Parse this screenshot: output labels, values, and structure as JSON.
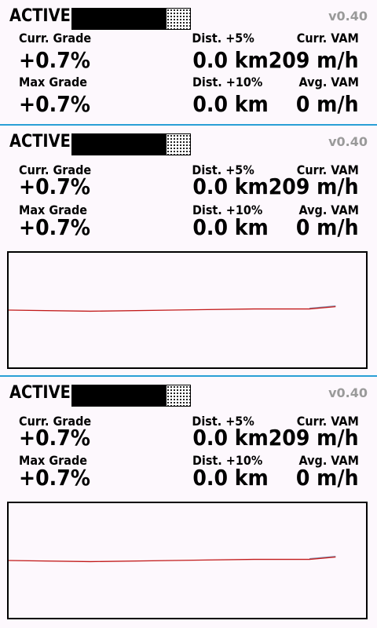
{
  "app": {
    "status": "ACTIVE",
    "version": "v0.40"
  },
  "colors": {
    "accent": "#2a9fd6",
    "chart_line": "#c21a1a",
    "chart_line_secondary": "#8a9ab5"
  },
  "progress": {
    "filled_fraction": 0.8
  },
  "fields": {
    "curr_grade": {
      "label": "Curr. Grade",
      "value": "+0.7%"
    },
    "dist_5": {
      "label": "Dist. +5%",
      "value": "0.0 km"
    },
    "curr_vam": {
      "label": "Curr. VAM",
      "value": "209 m/h"
    },
    "max_grade": {
      "label": "Max Grade",
      "value": "+0.7%"
    },
    "dist_10": {
      "label": "Dist. +10%",
      "value": "0.0 km"
    },
    "avg_vam": {
      "label": "Avg. VAM",
      "value": "0 m/h"
    }
  },
  "chart_data": {
    "type": "line",
    "title": "",
    "xlabel": "",
    "ylabel": "",
    "grid": false,
    "ylim": [
      0,
      1
    ],
    "series": [
      {
        "x": [
          0,
          0.25,
          0.5,
          0.75,
          0.92,
          1.0
        ],
        "y": [
          0.5,
          0.49,
          0.5,
          0.51,
          0.51,
          0.53
        ]
      }
    ]
  }
}
